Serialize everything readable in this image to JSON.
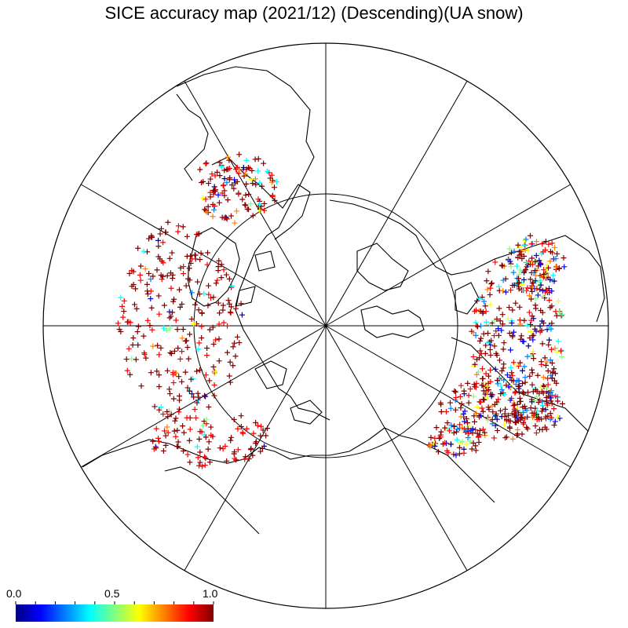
{
  "title": "SICE accuracy map (2021/12) (Descending)(UA snow)",
  "colorbar": {
    "labels": [
      "0.0",
      "0.5",
      "1.0"
    ],
    "min": 0.0,
    "max": 1.0,
    "colors": [
      "#000080",
      "#0000ff",
      "#0080ff",
      "#00ffff",
      "#80ff80",
      "#ffff00",
      "#ff8000",
      "#ff0000",
      "#800000"
    ]
  },
  "map": {
    "projection": "north-polar-stereographic",
    "graticule_meridians_deg": 30,
    "graticule_parallel_deg": [
      70
    ],
    "coastline_color": "#000000",
    "marker_symbol": "+"
  },
  "legend_colors": {
    "high_accuracy": "#8b0000",
    "low_accuracy": "#00008b"
  }
}
